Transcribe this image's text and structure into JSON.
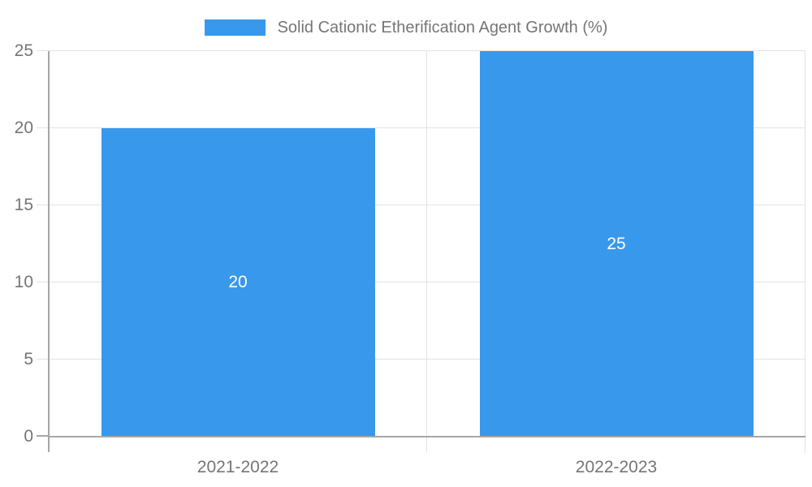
{
  "chart_data": {
    "type": "bar",
    "title": "Solid Cationic Etherification Agent Growth (%)",
    "categories": [
      "2021-2022",
      "2022-2023"
    ],
    "series": [
      {
        "name": "Solid Cationic Etherification Agent Growth (%)",
        "values": [
          20,
          25
        ]
      }
    ],
    "data_labels": [
      "20",
      "25"
    ],
    "xlabel": "",
    "ylabel": "",
    "ylim": [
      0,
      25
    ],
    "yticks": [
      0,
      5,
      10,
      15,
      20,
      25
    ],
    "grid": true,
    "legend_position": "top-center",
    "bar_color": "#3898ec",
    "bar_label_color": "#ffffff",
    "axis_text_color": "#757575",
    "grid_color": "#e2e2e2",
    "axis_line_color": "#a6a6a6",
    "background_color": "#ffffff"
  }
}
